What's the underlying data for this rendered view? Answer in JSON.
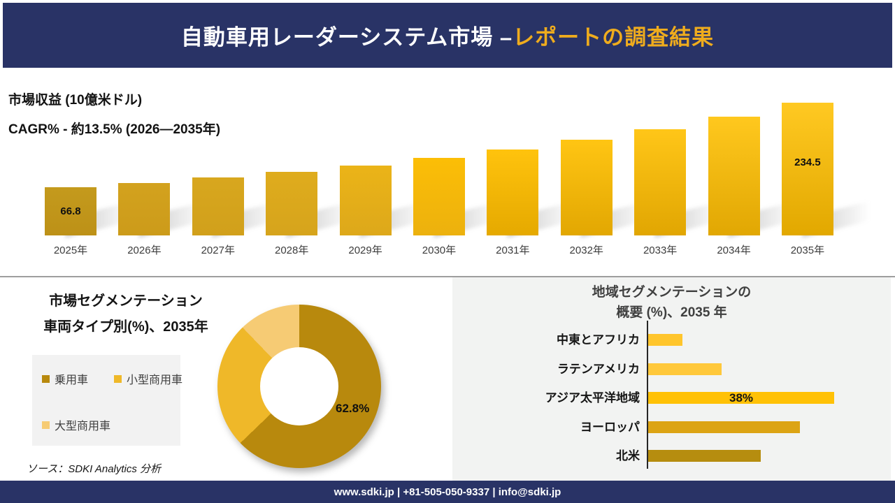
{
  "header": {
    "title_white": "自動車用レーダーシステム市場 –",
    "title_gold": "レポートの調査結果"
  },
  "chart_data": [
    {
      "type": "bar",
      "title": "市場収益 (10億米ドル)",
      "subtitle": "CAGR% - 約13.5% (2026―2035年)",
      "categories": [
        "2025年",
        "2026年",
        "2027年",
        "2028年",
        "2029年",
        "2030年",
        "2031年",
        "2032年",
        "2033年",
        "2034年",
        "2035年"
      ],
      "values": [
        66.8,
        75.7,
        85.9,
        97.4,
        110.4,
        125.2,
        141.9,
        160.9,
        182.4,
        206.8,
        234.5
      ],
      "value_labels": [
        "66.8",
        "",
        "",
        "",
        "",
        "",
        "",
        "",
        "",
        "",
        "234.5"
      ],
      "ylim": [
        0,
        250
      ],
      "grid": false,
      "legend": "none",
      "bar_fills": [
        [
          "#C49A1D",
          "#BD9117"
        ],
        [
          "#D3A21E",
          "#CC9B1A"
        ],
        [
          "#D8A71E",
          "#D1A01B"
        ],
        [
          "#DFAC1D",
          "#D6A41C"
        ],
        [
          "#EBB418",
          "#DDA81A"
        ],
        [
          "#FCBE06",
          "#ECB10E"
        ],
        [
          "#FFC30D",
          "#E5A900"
        ],
        [
          "#FFC513",
          "#E2A702"
        ],
        [
          "#FFC618",
          "#E1A602"
        ],
        [
          "#FFC81E",
          "#E1A703"
        ],
        [
          "#FFC922",
          "#E2A800"
        ]
      ]
    },
    {
      "type": "pie",
      "donut": true,
      "title": "市場セグメンテーション",
      "subtitle": "車両タイプ別(%)、2035年",
      "labels": [
        "乗用車",
        "小型商用車",
        "大型商用車"
      ],
      "values": [
        62.8,
        25.0,
        12.2
      ],
      "colors": [
        "#B8890D",
        "#EFB829",
        "#F6CB74"
      ],
      "shown_label": "62.8%",
      "legend_position": "left"
    },
    {
      "type": "bar",
      "orientation": "horizontal",
      "title_line1": "地域セグメンテーションの",
      "title_line2": "概要 (%)、2035 年",
      "categories": [
        "中東とアフリカ",
        "ラテンアメリカ",
        "アジア太平洋地域",
        "ヨーロッパ",
        "北米"
      ],
      "values": [
        7,
        15,
        38,
        31,
        23
      ],
      "value_labels": [
        "",
        "",
        "38%",
        "",
        ""
      ],
      "colors": [
        "#FFC52C",
        "#FFC83B",
        "#FFC107",
        "#DCA414",
        "#B68D0F"
      ],
      "xlim": [
        0,
        45
      ],
      "grid": false
    }
  ],
  "source_note": "ソース：SDKI Analytics 分析",
  "footer": {
    "text": "www.sdki.jp | +81-505-050-9337 | info@sdki.jp"
  },
  "theme": {
    "banner_navy": "#293366",
    "title_gold": "#EFAC1D",
    "divider_gray": "#9E9E9E",
    "panel_gray": "#F2F3F2",
    "legend_bg": "#F2F2F2"
  }
}
